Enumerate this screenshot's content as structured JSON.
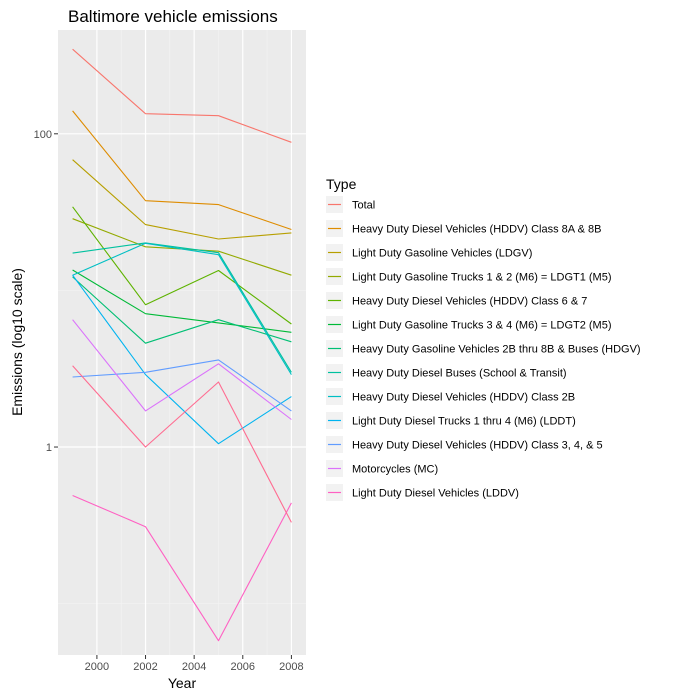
{
  "chart_data": {
    "type": "line",
    "title": "Baltimore vehicle emissions",
    "xlabel": "Year",
    "ylabel": "Emissions (log10 scale)",
    "x": [
      1999,
      2002,
      2005,
      2008
    ],
    "xlim": [
      1998.4,
      2008.6
    ],
    "ylim": [
      0.047,
      460
    ],
    "y_scale": "log10",
    "x_ticks": [
      2000,
      2002,
      2004,
      2006,
      2008
    ],
    "y_ticks": [
      1,
      100
    ],
    "grid": true,
    "legend": {
      "title": "Type",
      "position": "right"
    },
    "series": [
      {
        "name": "Total",
        "color": "#F8766D",
        "values": [
          346.8,
          134.3,
          130.4,
          88.3
        ]
      },
      {
        "name": "Heavy Duty Diesel Vehicles (HDDV) Class 8A & 8B",
        "color": "#DE8C00",
        "values": [
          140.1,
          37.4,
          35.3,
          24.5
        ]
      },
      {
        "name": "Light Duty Gasoline Vehicles (LDGV)",
        "color": "#B79F00",
        "values": [
          68.3,
          26.3,
          21.3,
          23.3
        ]
      },
      {
        "name": "Light Duty Gasoline Trucks 1 & 2 (M6) = LDGT1 (M5)",
        "color": "#93AA00",
        "values": [
          28.7,
          19.0,
          17.8,
          12.5
        ]
      },
      {
        "name": "Heavy Duty Diesel Vehicles (HDDV) Class 6 & 7",
        "color": "#5EB300",
        "values": [
          34.2,
          8.1,
          13.4,
          6.1
        ]
      },
      {
        "name": "Light Duty Gasoline Trucks 3 & 4 (M6) = LDGT2 (M5)",
        "color": "#00BA38",
        "values": [
          13.5,
          7.1,
          6.2,
          5.4
        ]
      },
      {
        "name": "Heavy Duty Gasoline Vehicles 2B thru 8B & Buses (HDGV)",
        "color": "#00BF74",
        "values": [
          12.2,
          4.6,
          6.5,
          4.7
        ]
      },
      {
        "name": "Heavy Duty Diesel Buses (School & Transit)",
        "color": "#00C19F",
        "values": [
          17.3,
          20.1,
          17.4,
          3.0
        ]
      },
      {
        "name": "Heavy Duty Diesel Vehicles (HDDV) Class 2B",
        "color": "#00BFC4",
        "values": [
          12.5,
          20.0,
          16.9,
          2.9
        ]
      },
      {
        "name": "Light Duty Diesel Trucks 1 thru 4 (M6) (LDDT)",
        "color": "#00B4F0",
        "values": [
          12.5,
          2.9,
          1.05,
          2.1
        ]
      },
      {
        "name": "Heavy Duty Diesel Vehicles (HDDV) Class 3, 4, & 5",
        "color": "#619CFF",
        "values": [
          2.8,
          3.0,
          3.6,
          1.7
        ]
      },
      {
        "name": "Motorcycles (MC)",
        "color": "#DB72FB",
        "values": [
          6.5,
          1.7,
          3.4,
          1.5
        ]
      },
      {
        "name": "Light Duty Diesel Vehicles (LDDV)",
        "color": "#FF61C3",
        "values": [
          0.49,
          0.31,
          0.058,
          0.44
        ]
      }
    ],
    "extra_series": [
      {
        "color": "#FF6C91",
        "values": [
          3.3,
          1.0,
          2.6,
          0.33
        ]
      }
    ]
  }
}
